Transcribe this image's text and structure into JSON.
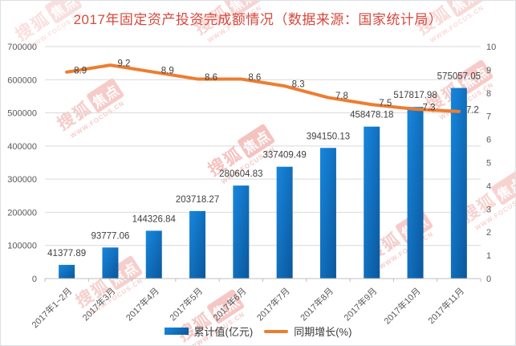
{
  "title": "2017年固定资产投资完成额情况（数据来源：国家统计局）",
  "watermark": {
    "brand_prefix": "搜狐",
    "brand_stamp": "焦点",
    "url": "WWW.FOCUS.CN"
  },
  "legend": {
    "bar_label": "累计值(亿元)",
    "line_label": "同期增长(%)"
  },
  "chart_data": {
    "type": "bar",
    "subtype": "combo-bar-line-dual-axis",
    "title": "2017年固定资产投资完成额情况（数据来源：国家统计局）",
    "categories": [
      "2017年1~2月",
      "2017年3月",
      "2017年4月",
      "2017年5月",
      "2017年6月",
      "2017年7月",
      "2017年8月",
      "2017年9月",
      "2017年10月",
      "2017年11月"
    ],
    "series": [
      {
        "name": "累计值(亿元)",
        "type": "bar",
        "axis": "left",
        "values": [
          41377.89,
          93777.06,
          144326.84,
          203718.27,
          280604.83,
          337409.49,
          394150.13,
          458478.18,
          517817.98,
          575057.05
        ],
        "value_labels": [
          "41377.89",
          "93777.06",
          "144326.84",
          "203718.27",
          "280604.83",
          "337409.49",
          "394150.13",
          "458478.18",
          "517817.98",
          "575057.05"
        ]
      },
      {
        "name": "同期增长(%)",
        "type": "line",
        "axis": "right",
        "values": [
          8.9,
          9.2,
          8.9,
          8.6,
          8.6,
          8.3,
          7.8,
          7.5,
          7.3,
          7.2
        ],
        "value_labels": [
          "8.9",
          "9.2",
          "8.9",
          "8.6",
          "8.6",
          "8.3",
          "7.8",
          "7.5",
          "7.3",
          "7.2"
        ]
      }
    ],
    "left_axis": {
      "min": 0,
      "max": 700000,
      "step": 100000,
      "labels": [
        "0",
        "100000",
        "200000",
        "300000",
        "400000",
        "500000",
        "600000",
        "700000"
      ]
    },
    "right_axis": {
      "min": 0,
      "max": 10,
      "step": 1,
      "labels": [
        "0",
        "1",
        "2",
        "3",
        "4",
        "5",
        "6",
        "7",
        "8",
        "9",
        "10"
      ]
    },
    "grid": true,
    "legend_position": "bottom"
  },
  "colors": {
    "title": "#d5493f",
    "bar_gradient_start": "#1787dd",
    "bar_gradient_end": "#0b579c",
    "line": "#ED7D31",
    "grid": "#d9d9d9",
    "axis_line": "#bfbfbf",
    "axis_text": "#595959",
    "data_label": "#3f3f3f",
    "watermark": "#e2574e"
  }
}
